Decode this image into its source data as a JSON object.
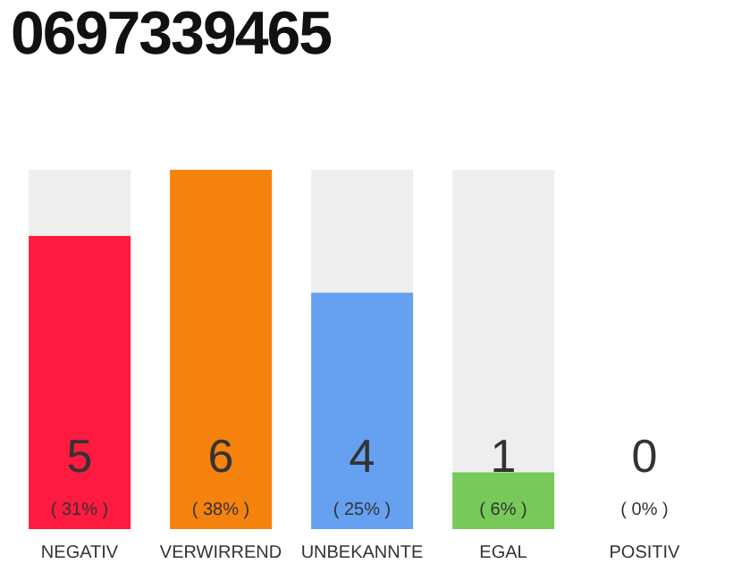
{
  "chart_data": {
    "type": "bar",
    "title": "0697339465",
    "categories": [
      "NEGATIV",
      "VERWIRREND",
      "UNBEKANNTE",
      "EGAL",
      "POSITIV"
    ],
    "values": [
      31,
      38,
      25,
      6,
      0
    ],
    "colors": [
      "#ff1a40",
      "#f5820d",
      "#66a0f0",
      "#77c95a",
      "#cccccc"
    ],
    "value_labels": [
      "( 31% )",
      "( 38% )",
      "( 25% )",
      "( 6% )",
      "( 0% )"
    ],
    "annotations": [
      "5",
      "6",
      "4",
      "1",
      "0"
    ],
    "tick_labels": "x"
  }
}
